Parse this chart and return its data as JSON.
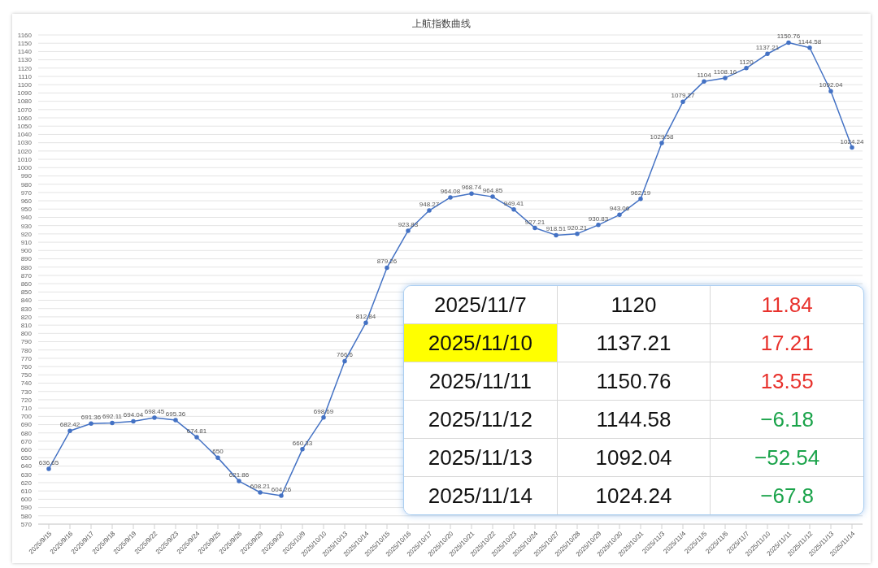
{
  "chart_data": [
    {
      "type": "line",
      "title": "上航指数曲线",
      "categories": [
        "2025/9/15",
        "2025/9/16",
        "2025/9/17",
        "2025/9/18",
        "2025/9/19",
        "2025/9/22",
        "2025/9/23",
        "2025/9/24",
        "2025/9/25",
        "2025/9/26",
        "2025/9/29",
        "2025/9/30",
        "2025/10/9",
        "2025/10/10",
        "2025/10/13",
        "2025/10/14",
        "2025/10/15",
        "2025/10/16",
        "2025/10/17",
        "2025/10/20",
        "2025/10/21",
        "2025/10/22",
        "2025/10/23",
        "2025/10/24",
        "2025/10/27",
        "2025/10/28",
        "2025/10/29",
        "2025/10/30",
        "2025/10/31",
        "2025/11/3",
        "2025/11/4",
        "2025/11/5",
        "2025/11/6",
        "2025/11/7",
        "2025/11/10",
        "2025/11/11",
        "2025/11/12",
        "2025/11/13",
        "2025/11/14"
      ],
      "series": [
        {
          "color": "#4472c4",
          "values": [
            636.65,
            682.42,
            691.36,
            692.11,
            694.04,
            698.45,
            695.36,
            674.81,
            650,
            621.86,
            608.21,
            604.26,
            660.33,
            698.69,
            766.6,
            812.84,
            879.26,
            923.83,
            948.27,
            964.08,
            968.74,
            964.85,
            949.41,
            927.21,
            918.51,
            920.21,
            930.83,
            943.06,
            962.19,
            1029.58,
            1079.27,
            1104,
            1108.16,
            1120,
            1137.21,
            1150.76,
            1144.58,
            1092.04,
            1024.24
          ]
        }
      ],
      "ylim": [
        570,
        1160
      ],
      "yticks": [
        570,
        580,
        590,
        600,
        610,
        620,
        630,
        640,
        650,
        660,
        670,
        680,
        690,
        700,
        710,
        720,
        730,
        740,
        750,
        760,
        770,
        780,
        790,
        800,
        810,
        820,
        830,
        840,
        850,
        860,
        870,
        880,
        890,
        900,
        910,
        920,
        930,
        940,
        950,
        960,
        970,
        980,
        990,
        1000,
        1010,
        1020,
        1030,
        1040,
        1050,
        1060,
        1070,
        1080,
        1090,
        1100,
        1110,
        1120,
        1130,
        1140,
        1150,
        1160
      ],
      "grid": "y",
      "marker": "circle",
      "line_style": "solid",
      "data_labels": true
    },
    {
      "type": "other",
      "y_categories": [
        "2025/11/7",
        "2025/11/10",
        "2025/11/11",
        "2025/11/12",
        "2025/11/13",
        "2025/11/14"
      ],
      "cell_labels": [
        [
          "1120",
          "11.84"
        ],
        [
          "1137.21",
          "17.21"
        ],
        [
          "1150.76",
          "13.55"
        ],
        [
          "1144.58",
          "−6.18"
        ],
        [
          "1092.04",
          "−52.54"
        ],
        [
          "1024.24",
          "−67.8"
        ]
      ],
      "colors": [
        [
          "#ffffff",
          "#e8322d"
        ],
        [
          "#ffff00",
          "#e8322d"
        ],
        [
          "#ffffff",
          "#e8322d"
        ],
        [
          "#ffffff",
          "#1aa34a"
        ],
        [
          "#ffffff",
          "#1aa34a"
        ],
        [
          "#ffffff",
          "#1aa34a"
        ]
      ]
    }
  ]
}
